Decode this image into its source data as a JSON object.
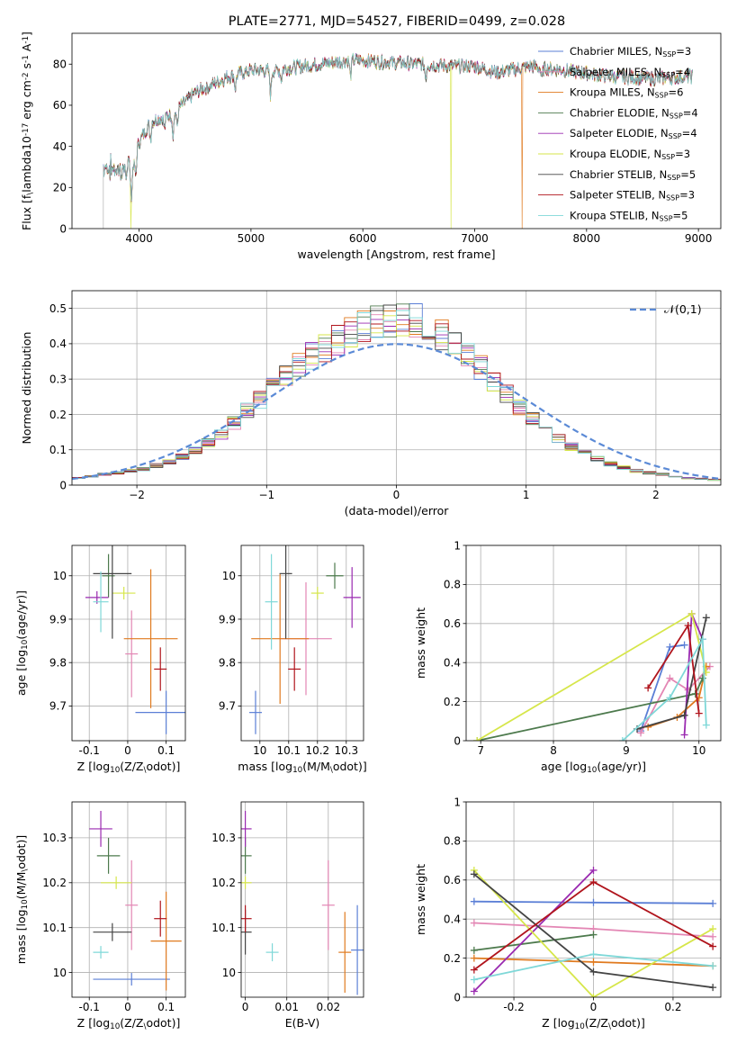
{
  "series_styles": [
    {
      "name": "Chabrier MILES",
      "color": "#5b7fd6",
      "nssp": "3"
    },
    {
      "name": "Salpeter MILES",
      "color": "#e386b4",
      "nssp": "4"
    },
    {
      "name": "Kroupa MILES",
      "color": "#e07a1f",
      "nssp": "6"
    },
    {
      "name": "Chabrier ELODIE",
      "color": "#4d7a4d",
      "nssp": "4"
    },
    {
      "name": "Salpeter ELODIE",
      "color": "#9a2ab0",
      "nssp": "4"
    },
    {
      "name": "Kroupa ELODIE",
      "color": "#d6e64a",
      "nssp": "3"
    },
    {
      "name": "Chabrier STELIB",
      "color": "#444444",
      "nssp": "5"
    },
    {
      "name": "Salpeter STELIB",
      "color": "#b0141c",
      "nssp": "3"
    },
    {
      "name": "Kroupa STELIB",
      "color": "#7fd8d8",
      "nssp": "5"
    }
  ],
  "chart_data": [
    {
      "id": "spectrum",
      "type": "line",
      "title": "PLATE=2771, MJD=54527, FIBERID=0499, z=0.028",
      "xlabel": "wavelength [Angstrom, rest frame]",
      "ylabel": "Flux [f$_\\lambda$10$^{-17}$ erg cm$^{-2}$ s$^{-1}$ A$^{-1}$]",
      "xlim": [
        3400,
        9200
      ],
      "ylim": [
        0,
        95
      ],
      "xticks": [
        4000,
        5000,
        6000,
        7000,
        8000,
        9000
      ],
      "yticks": [
        0,
        20,
        40,
        60,
        80
      ],
      "legend_position": "top-right",
      "continuum": [
        [
          3680,
          30
        ],
        [
          3900,
          28
        ],
        [
          4000,
          42
        ],
        [
          4100,
          52
        ],
        [
          4300,
          56
        ],
        [
          4500,
          66
        ],
        [
          4800,
          74
        ],
        [
          5000,
          77
        ],
        [
          5200,
          77
        ],
        [
          5600,
          80
        ],
        [
          5900,
          82
        ],
        [
          6200,
          81
        ],
        [
          6500,
          80
        ],
        [
          6800,
          79
        ],
        [
          7000,
          79
        ],
        [
          7200,
          76
        ],
        [
          7500,
          79
        ],
        [
          7800,
          77
        ],
        [
          8200,
          74
        ],
        [
          8600,
          73
        ],
        [
          8950,
          74
        ]
      ],
      "absorption_lines": [
        [
          3934,
          18
        ],
        [
          3969,
          14
        ],
        [
          4102,
          8
        ],
        [
          4227,
          6
        ],
        [
          4304,
          10
        ],
        [
          4340,
          8
        ],
        [
          4861,
          7
        ],
        [
          5175,
          12
        ],
        [
          5270,
          5
        ],
        [
          5890,
          8
        ],
        [
          6563,
          6
        ],
        [
          7600,
          6
        ]
      ],
      "drops": [
        {
          "series": 5,
          "x": 6790
        },
        {
          "series": 2,
          "x": 7425
        },
        {
          "series": 5,
          "x": 3925
        }
      ]
    },
    {
      "id": "residuals",
      "type": "histogram",
      "xlabel": "(data-model)/error",
      "ylabel": "Normed distribution",
      "xlim": [
        -2.5,
        2.5
      ],
      "ylim": [
        0,
        0.55
      ],
      "xticks": [
        -2,
        -1,
        0,
        1,
        2
      ],
      "yticks": [
        0.0,
        0.1,
        0.2,
        0.3,
        0.4,
        0.5
      ],
      "grid": true,
      "reference_curve": {
        "label": "$\\mathcal{N}(0,1)$",
        "mean": 0,
        "sigma": 1,
        "color": "#5b8ad6"
      },
      "bin_width": 0.1,
      "base_shape": [
        0.02,
        0.025,
        0.03,
        0.035,
        0.04,
        0.045,
        0.055,
        0.065,
        0.08,
        0.1,
        0.12,
        0.145,
        0.175,
        0.21,
        0.24,
        0.28,
        0.31,
        0.34,
        0.365,
        0.39,
        0.41,
        0.43,
        0.45,
        0.46,
        0.47,
        0.47,
        0.465,
        0.45,
        0.43,
        0.4,
        0.37,
        0.33,
        0.29,
        0.255,
        0.22,
        0.19,
        0.16,
        0.135,
        0.11,
        0.09,
        0.075,
        0.06,
        0.05,
        0.04,
        0.035,
        0.03,
        0.025,
        0.02,
        0.018,
        0.015
      ]
    },
    {
      "id": "z_age",
      "type": "errorbar",
      "xlabel": "Z [log$_{10}$(Z/Z$_\\odot$)]",
      "ylabel": "age  [log$_{10}$(age/yr)]",
      "xlim": [
        -0.145,
        0.15
      ],
      "ylim": [
        9.62,
        10.07
      ],
      "xticks": [
        -0.1,
        0.0,
        0.1
      ],
      "yticks": [
        9.7,
        9.8,
        9.9,
        10.0
      ],
      "grid": true,
      "points": [
        {
          "s": 0,
          "x": 0.1,
          "y": 9.685,
          "xerr": 0.08,
          "yerr": 0.05
        },
        {
          "s": 1,
          "x": 0.01,
          "y": 9.82,
          "xerr": 0.0,
          "yerr": 0.1
        },
        {
          "s": 2,
          "x": 0.06,
          "y": 9.855,
          "xerr": 0.07,
          "yerr": 0.16
        },
        {
          "s": 3,
          "x": -0.05,
          "y": 10.0,
          "xerr": 0.0,
          "yerr": 0.05
        },
        {
          "s": 4,
          "x": -0.08,
          "y": 9.95,
          "xerr": 0.03,
          "yerr": 0.0
        },
        {
          "s": 5,
          "x": -0.01,
          "y": 9.96,
          "xerr": 0.03,
          "yerr": 0.0
        },
        {
          "s": 6,
          "x": -0.04,
          "y": 10.005,
          "xerr": 0.05,
          "yerr": 0.15
        },
        {
          "s": 7,
          "x": 0.085,
          "y": 9.785,
          "xerr": 0.01,
          "yerr": 0.05
        },
        {
          "s": 8,
          "x": -0.07,
          "y": 9.94,
          "xerr": 0.02,
          "yerr": 0.07
        }
      ]
    },
    {
      "id": "mass_age",
      "type": "errorbar",
      "xlabel": "mass [log$_{10}$(M/M$_\\odot$)]",
      "ylabel": "",
      "xlim": [
        9.935,
        10.36
      ],
      "ylim": [
        9.62,
        10.07
      ],
      "xticks": [
        10.0,
        10.1,
        10.2,
        10.3
      ],
      "yticks": [
        9.7,
        9.8,
        9.9,
        10.0
      ],
      "grid": true,
      "points": [
        {
          "s": 0,
          "x": 9.985,
          "y": 9.685,
          "xerr": 0.0,
          "yerr": 0.05
        },
        {
          "s": 1,
          "x": 10.16,
          "y": 9.855,
          "xerr": 0.09,
          "yerr": 0.13
        },
        {
          "s": 2,
          "x": 10.07,
          "y": 9.855,
          "xerr": 0.1,
          "yerr": 0.15
        },
        {
          "s": 3,
          "x": 10.26,
          "y": 10.0,
          "xerr": 0.03,
          "yerr": 0.03
        },
        {
          "s": 4,
          "x": 10.32,
          "y": 9.95,
          "xerr": 0.03,
          "yerr": 0.07
        },
        {
          "s": 5,
          "x": 10.2,
          "y": 9.96,
          "xerr": 0.0,
          "yerr": 0.0
        },
        {
          "s": 6,
          "x": 10.09,
          "y": 10.005,
          "xerr": 0.02,
          "yerr": 0.15
        },
        {
          "s": 7,
          "x": 10.12,
          "y": 9.785,
          "xerr": 0.0,
          "yerr": 0.05
        },
        {
          "s": 8,
          "x": 10.04,
          "y": 9.94,
          "xerr": 0.01,
          "yerr": 0.11
        }
      ]
    },
    {
      "id": "age_weight",
      "type": "line",
      "xlabel": "age  [log$_{10}$(age/yr)]",
      "ylabel": "mass weight",
      "xlim": [
        6.8,
        10.3
      ],
      "ylim": [
        0,
        1.0
      ],
      "xticks": [
        7,
        8,
        9,
        10
      ],
      "yticks": [
        0.0,
        0.2,
        0.4,
        0.6,
        0.8,
        1.0
      ],
      "grid": true,
      "lines": [
        {
          "s": 0,
          "pts": [
            [
              9.2,
              0.05
            ],
            [
              9.6,
              0.48
            ],
            [
              9.8,
              0.49
            ]
          ]
        },
        {
          "s": 1,
          "pts": [
            [
              9.2,
              0.04
            ],
            [
              9.6,
              0.32
            ],
            [
              9.85,
              0.26
            ],
            [
              10.15,
              0.38
            ]
          ]
        },
        {
          "s": 2,
          "pts": [
            [
              9.3,
              0.07
            ],
            [
              9.7,
              0.12
            ],
            [
              10.0,
              0.22
            ],
            [
              10.1,
              0.38
            ]
          ]
        },
        {
          "s": 3,
          "pts": [
            [
              6.95,
              0.0
            ],
            [
              9.95,
              0.24
            ],
            [
              10.05,
              0.32
            ]
          ]
        },
        {
          "s": 4,
          "pts": [
            [
              9.8,
              0.03
            ],
            [
              9.9,
              0.65
            ],
            [
              10.05,
              0.52
            ]
          ]
        },
        {
          "s": 5,
          "pts": [
            [
              6.95,
              0.0
            ],
            [
              9.9,
              0.65
            ],
            [
              10.1,
              0.35
            ]
          ]
        },
        {
          "s": 6,
          "pts": [
            [
              9.15,
              0.06
            ],
            [
              9.8,
              0.13
            ],
            [
              10.1,
              0.63
            ]
          ]
        },
        {
          "s": 7,
          "pts": [
            [
              9.3,
              0.27
            ],
            [
              9.85,
              0.59
            ],
            [
              10.0,
              0.14
            ]
          ]
        },
        {
          "s": 8,
          "pts": [
            [
              8.95,
              0.0
            ],
            [
              9.6,
              0.22
            ],
            [
              10.05,
              0.52
            ],
            [
              10.1,
              0.08
            ]
          ]
        }
      ]
    },
    {
      "id": "z_mass",
      "type": "errorbar",
      "xlabel": "Z [log$_{10}$(Z/Z$_\\odot$)]",
      "ylabel": "mass [log$_{10}$(M/M$_\\odot$)]",
      "xlim": [
        -0.145,
        0.15
      ],
      "ylim": [
        9.945,
        10.38
      ],
      "xticks": [
        -0.1,
        0.0,
        0.1
      ],
      "yticks": [
        10.0,
        10.1,
        10.2,
        10.3
      ],
      "grid": true,
      "points": [
        {
          "s": 0,
          "x": 0.01,
          "y": 9.985,
          "xerr": 0.1,
          "yerr": 0.0
        },
        {
          "s": 1,
          "x": 0.01,
          "y": 10.15,
          "xerr": 0.0,
          "yerr": 0.1
        },
        {
          "s": 2,
          "x": 0.1,
          "y": 10.07,
          "xerr": 0.04,
          "yerr": 0.11
        },
        {
          "s": 3,
          "x": -0.05,
          "y": 10.26,
          "xerr": 0.03,
          "yerr": 0.04
        },
        {
          "s": 4,
          "x": -0.07,
          "y": 10.32,
          "xerr": 0.03,
          "yerr": 0.04
        },
        {
          "s": 5,
          "x": -0.03,
          "y": 10.2,
          "xerr": 0.04,
          "yerr": 0.0
        },
        {
          "s": 6,
          "x": -0.04,
          "y": 10.09,
          "xerr": 0.05,
          "yerr": 0.02
        },
        {
          "s": 7,
          "x": 0.085,
          "y": 10.12,
          "xerr": 0.01,
          "yerr": 0.04
        },
        {
          "s": 8,
          "x": -0.07,
          "y": 10.045,
          "xerr": 0.02,
          "yerr": 0.01
        }
      ]
    },
    {
      "id": "ebv_mass",
      "type": "errorbar",
      "xlabel": "E(B-V)",
      "ylabel": "",
      "xlim": [
        -0.001,
        0.0285
      ],
      "ylim": [
        9.945,
        10.38
      ],
      "xticks": [
        0.0,
        0.01,
        0.02
      ],
      "yticks": [
        10.0,
        10.1,
        10.2,
        10.3
      ],
      "grid": true,
      "points": [
        {
          "s": 0,
          "x": 0.027,
          "y": 10.05,
          "xerr": 0.0,
          "yerr": 0.1
        },
        {
          "s": 1,
          "x": 0.02,
          "y": 10.15,
          "xerr": 0.0,
          "yerr": 0.1
        },
        {
          "s": 2,
          "x": 0.024,
          "y": 10.045,
          "xerr": 0.0,
          "yerr": 0.09
        },
        {
          "s": 3,
          "x": 0.0,
          "y": 10.26,
          "xerr": 0.0,
          "yerr": 0.04
        },
        {
          "s": 4,
          "x": 0.0,
          "y": 10.32,
          "xerr": 0.0,
          "yerr": 0.04
        },
        {
          "s": 5,
          "x": 0.0,
          "y": 10.2,
          "xerr": 0.0,
          "yerr": 0.0
        },
        {
          "s": 6,
          "x": 0.0,
          "y": 10.09,
          "xerr": 0.0,
          "yerr": 0.05
        },
        {
          "s": 7,
          "x": 0.0,
          "y": 10.12,
          "xerr": 0.0,
          "yerr": 0.03
        },
        {
          "s": 8,
          "x": 0.0065,
          "y": 10.045,
          "xerr": 0.0,
          "yerr": 0.02
        }
      ]
    },
    {
      "id": "z_weight",
      "type": "line",
      "xlabel": "Z [log$_{10}$(Z/Z$_\\odot$)]",
      "ylabel": "mass weight",
      "xlim": [
        -0.32,
        0.32
      ],
      "ylim": [
        0,
        1.0
      ],
      "xticks": [
        -0.2,
        0.0,
        0.2
      ],
      "yticks": [
        0.0,
        0.2,
        0.4,
        0.6,
        0.8,
        1.0
      ],
      "grid": true,
      "lines": [
        {
          "s": 0,
          "pts": [
            [
              -0.3,
              0.49
            ],
            [
              0.0,
              0.485
            ],
            [
              0.3,
              0.48
            ]
          ]
        },
        {
          "s": 1,
          "pts": [
            [
              -0.3,
              0.38
            ],
            [
              0.0,
              0.35
            ],
            [
              0.3,
              0.31
            ]
          ]
        },
        {
          "s": 2,
          "pts": [
            [
              -0.3,
              0.2
            ],
            [
              0.0,
              0.18
            ],
            [
              0.3,
              0.16
            ]
          ]
        },
        {
          "s": 3,
          "pts": [
            [
              -0.3,
              0.24
            ],
            [
              0.0,
              0.32
            ]
          ]
        },
        {
          "s": 4,
          "pts": [
            [
              -0.3,
              0.03
            ],
            [
              0.0,
              0.65
            ]
          ]
        },
        {
          "s": 5,
          "pts": [
            [
              -0.3,
              0.65
            ],
            [
              0.0,
              0.0
            ],
            [
              0.3,
              0.35
            ]
          ]
        },
        {
          "s": 6,
          "pts": [
            [
              -0.3,
              0.63
            ],
            [
              0.0,
              0.13
            ],
            [
              0.3,
              0.05
            ]
          ]
        },
        {
          "s": 7,
          "pts": [
            [
              -0.3,
              0.14
            ],
            [
              0.0,
              0.59
            ],
            [
              0.3,
              0.26
            ]
          ]
        },
        {
          "s": 8,
          "pts": [
            [
              -0.3,
              0.09
            ],
            [
              0.0,
              0.22
            ],
            [
              0.3,
              0.16
            ]
          ]
        }
      ]
    }
  ]
}
